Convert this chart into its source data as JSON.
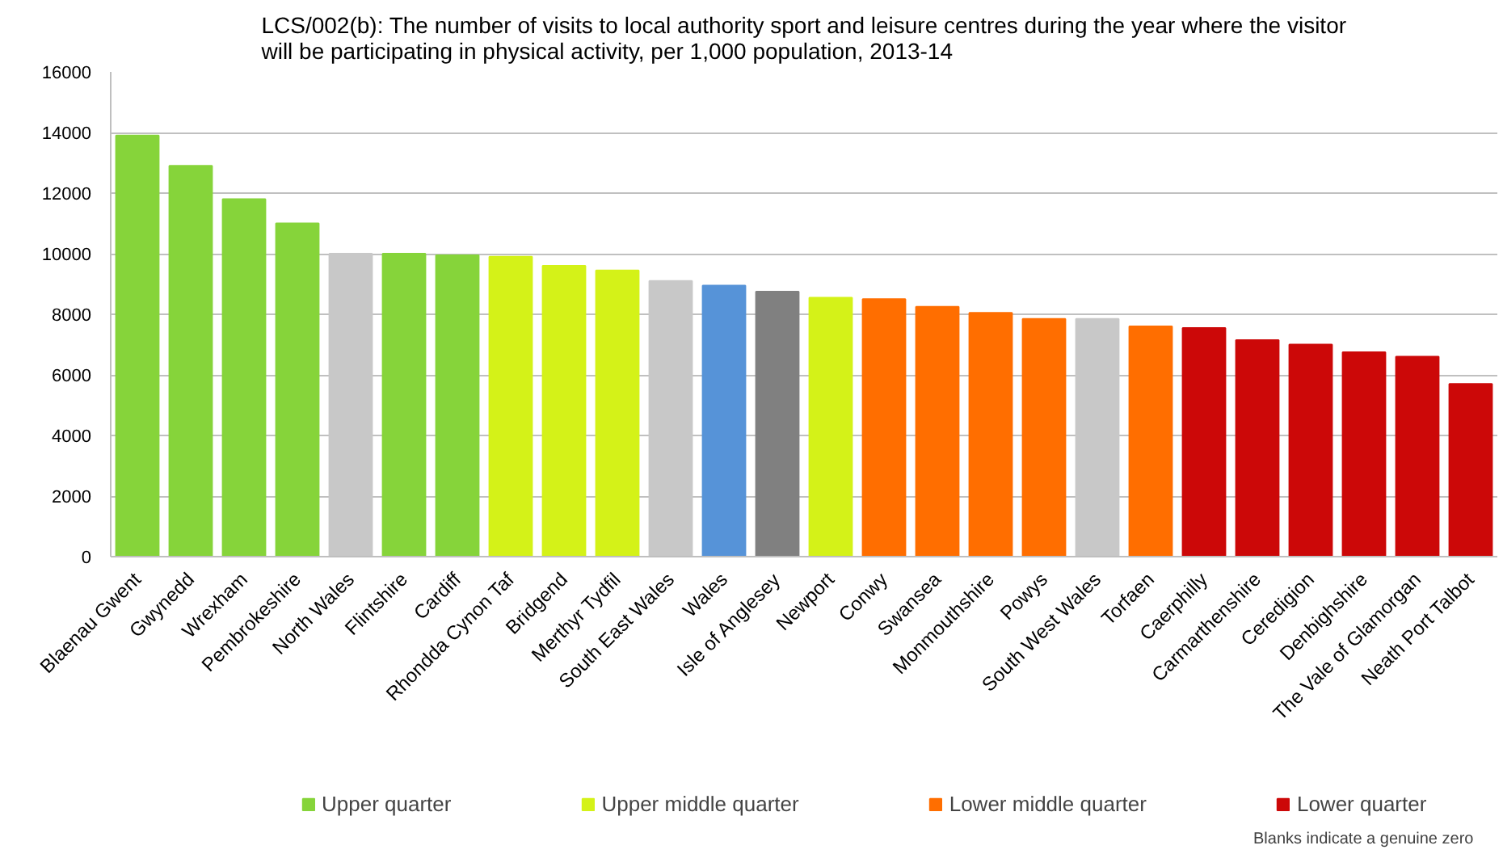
{
  "chart_data": {
    "type": "bar",
    "title": "LCS/002(b): The number of visits to local authority sport and leisure centres during the year where the visitor will be participating in physical activity, per 1,000 population, 2013-14",
    "categories": [
      "Blaenau Gwent",
      "Gwynedd",
      "Wrexham",
      "Pembrokeshire",
      "North Wales",
      "Flintshire",
      "Cardiff",
      "Rhondda Cynon Taf",
      "Bridgend",
      "Merthyr Tydfil",
      "South East Wales",
      "Wales",
      "Isle of Anglesey",
      "Newport",
      "Conwy",
      "Swansea",
      "Monmouthshire",
      "Powys",
      "South West Wales",
      "Torfaen",
      "Caerphilly",
      "Carmarthenshire",
      "Ceredigion",
      "Denbighshire",
      "The Vale of Glamorgan",
      "Neath Port Talbot"
    ],
    "stacked": true,
    "series": [
      {
        "name": "Upper quarter",
        "color": "#86d43a",
        "values": [
          13900,
          12900,
          11800,
          11000,
          null,
          10000,
          9950,
          null,
          null,
          null,
          null,
          null,
          null,
          null,
          null,
          null,
          null,
          null,
          null,
          null,
          null,
          null,
          null,
          null,
          null,
          null
        ]
      },
      {
        "name": "Upper middle quarter",
        "color": "#d4f218",
        "values": [
          null,
          null,
          null,
          null,
          null,
          null,
          null,
          9900,
          9600,
          9450,
          null,
          null,
          null,
          8550,
          null,
          null,
          null,
          null,
          null,
          null,
          null,
          null,
          null,
          null,
          null,
          null
        ]
      },
      {
        "name": "Lower middle quarter",
        "color": "#ff6e00",
        "values": [
          null,
          null,
          null,
          null,
          null,
          null,
          null,
          null,
          null,
          null,
          null,
          null,
          null,
          null,
          8500,
          8250,
          8050,
          7850,
          null,
          7600,
          null,
          null,
          null,
          null,
          null,
          null
        ]
      },
      {
        "name": "Lower quarter",
        "color": "#cc0808",
        "values": [
          null,
          null,
          null,
          null,
          null,
          null,
          null,
          null,
          null,
          null,
          null,
          null,
          null,
          null,
          null,
          null,
          null,
          null,
          null,
          null,
          7550,
          7150,
          7000,
          6750,
          6600,
          5700
        ]
      },
      {
        "color": "#c8c8c8",
        "values": [
          null,
          null,
          null,
          null,
          10000,
          null,
          null,
          null,
          null,
          null,
          9100,
          null,
          null,
          null,
          null,
          null,
          null,
          null,
          7850,
          null,
          null,
          null,
          null,
          null,
          null,
          null
        ]
      },
      {
        "color": "#5693d8",
        "values": [
          null,
          null,
          null,
          null,
          null,
          null,
          null,
          null,
          null,
          null,
          null,
          8950,
          null,
          null,
          null,
          null,
          null,
          null,
          null,
          null,
          null,
          null,
          null,
          null,
          null,
          null
        ]
      },
      {
        "color": "#808080",
        "values": [
          null,
          null,
          null,
          null,
          null,
          null,
          null,
          null,
          null,
          null,
          null,
          null,
          8750,
          null,
          null,
          null,
          null,
          null,
          null,
          null,
          null,
          null,
          null,
          null,
          null,
          null
        ]
      }
    ],
    "ylim": [
      0,
      16000
    ],
    "yticks": [
      0,
      2000,
      4000,
      6000,
      8000,
      10000,
      12000,
      14000,
      16000
    ],
    "grid": "y",
    "legend": "bottom",
    "annotations": [
      "Blanks indicate a genuine zero"
    ]
  }
}
